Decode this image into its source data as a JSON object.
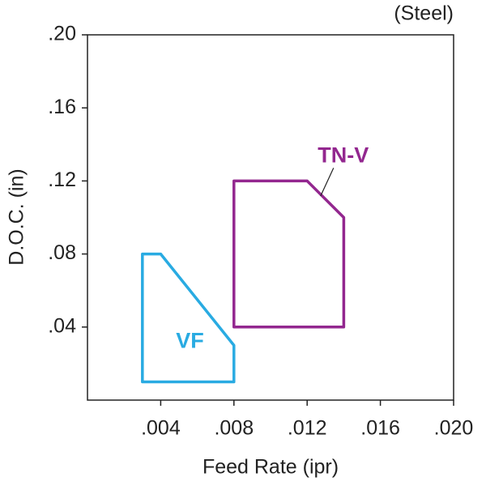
{
  "chart_data": {
    "type": "region",
    "annotation": "(Steel)",
    "x_label": "Feed Rate (ipr)",
    "y_label": "D.O.C. (in)",
    "xlim": [
      0,
      0.02
    ],
    "ylim": [
      0,
      0.2
    ],
    "xticks": [
      {
        "value": 0.004,
        "label": ".004"
      },
      {
        "value": 0.008,
        "label": ".008"
      },
      {
        "value": 0.012,
        "label": ".012"
      },
      {
        "value": 0.016,
        "label": ".016"
      },
      {
        "value": 0.02,
        "label": ".020"
      }
    ],
    "yticks": [
      {
        "value": 0.04,
        "label": ".04"
      },
      {
        "value": 0.08,
        "label": ".08"
      },
      {
        "value": 0.12,
        "label": ".12"
      },
      {
        "value": 0.16,
        "label": ".16"
      },
      {
        "value": 0.2,
        "label": ".20"
      }
    ],
    "series": [
      {
        "name": "VF",
        "color": "#29abe2",
        "x": [
          0.003,
          0.004,
          0.008,
          0.008,
          0.003
        ],
        "y": [
          0.08,
          0.08,
          0.03,
          0.01,
          0.01
        ]
      },
      {
        "name": "TN-V",
        "color": "#93278f",
        "x": [
          0.008,
          0.012,
          0.014,
          0.014,
          0.008
        ],
        "y": [
          0.12,
          0.12,
          0.1,
          0.04,
          0.04
        ]
      }
    ]
  }
}
